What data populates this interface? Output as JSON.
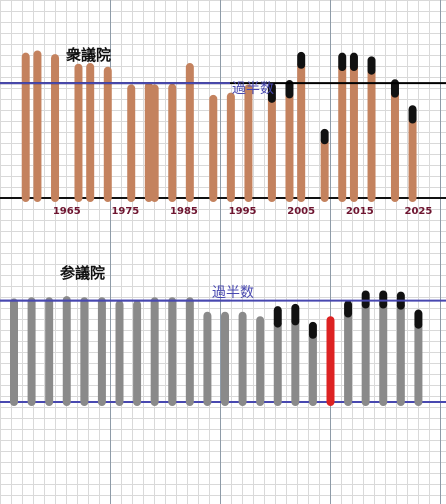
{
  "colors": {
    "grid": "#d9d9d9",
    "grid_major": "#8e9ba8",
    "majority_line": "#4848b0",
    "baseline": "#111111",
    "shugiin_bar": "#c4825e",
    "sangiin_bar": "#8a8a8a",
    "sangiin_highlight": "#dd2222",
    "coalition_cap": "#111111",
    "year_label": "#6e1530"
  },
  "chart_data": [
    {
      "type": "bar",
      "title": "衆議院",
      "reference_label": "過半数",
      "xlabel": "",
      "ylabel": "",
      "x_ticks": [
        "1965",
        "1975",
        "1985",
        "1995",
        "2005",
        "2015",
        "2025"
      ],
      "x_tick_years": [
        1965,
        1975,
        1985,
        1995,
        2005,
        2015,
        2025
      ],
      "xlim": [
        1956,
        2028
      ],
      "ylim": [
        0,
        1.0
      ],
      "reference_value": 0.776,
      "grid": true,
      "series": [
        {
          "x": [
            1958,
            1960,
            1963,
            1967,
            1969,
            1972,
            1976,
            1979,
            1980,
            1983,
            1986,
            1990,
            1993,
            1996,
            2000,
            2003,
            2005,
            2009,
            2012,
            2014,
            2017,
            2021,
            2024
          ],
          "values": [
            0.955,
            0.97,
            0.945,
            0.88,
            0.885,
            0.86,
            0.74,
            0.755,
            0.74,
            0.745,
            0.885,
            0.67,
            0.685,
            0.74,
            0.75,
            0.77,
            0.96,
            0.44,
            0.955,
            0.955,
            0.93,
            0.775,
            0.6
          ],
          "cap": [
            0,
            0,
            0,
            0,
            0,
            0,
            0,
            0,
            0,
            0,
            0,
            0,
            0,
            0,
            0.08,
            0.07,
            0.06,
            0.05,
            0.07,
            0.07,
            0.07,
            0.07,
            0.07
          ]
        }
      ]
    },
    {
      "type": "bar",
      "title": "参議院",
      "reference_label": "過半数",
      "xlabel": "",
      "ylabel": "",
      "xlim": [
        1956,
        2028
      ],
      "ylim": [
        0,
        1.0
      ],
      "reference_value": 0.905,
      "grid": true,
      "highlight_index": 18,
      "series": [
        {
          "x": [
            1956,
            1959,
            1962,
            1965,
            1968,
            1971,
            1974,
            1977,
            1980,
            1983,
            1986,
            1989,
            1992,
            1995,
            1998,
            2001,
            2004,
            2007,
            2010,
            2013,
            2016,
            2019,
            2022,
            2025
          ],
          "values": [
            0.89,
            0.9,
            0.9,
            0.91,
            0.9,
            0.9,
            0.87,
            0.87,
            0.9,
            0.9,
            0.9,
            0.77,
            0.77,
            0.77,
            0.73,
            0.82,
            0.84,
            0.68,
            0.73,
            0.87,
            0.96,
            0.96,
            0.95,
            0.79
          ],
          "cap": [
            0,
            0,
            0,
            0,
            0,
            0,
            0,
            0,
            0,
            0,
            0,
            0,
            0,
            0,
            0,
            0.12,
            0.12,
            0.08,
            0,
            0.08,
            0.09,
            0.09,
            0.09,
            0.1
          ]
        }
      ]
    }
  ]
}
